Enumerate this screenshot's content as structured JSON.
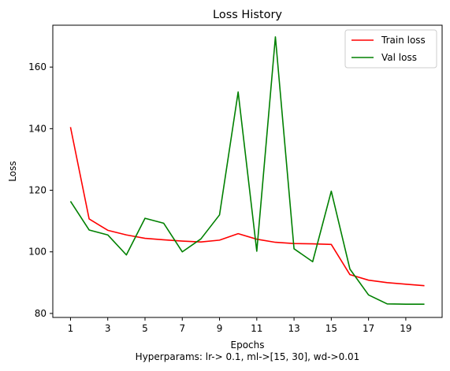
{
  "chart_data": {
    "type": "line",
    "title": "Loss History",
    "xlabel": "Epochs",
    "ylabel": "Loss",
    "caption": "Hyperparams: lr-> 0.1, ml->[15, 30], wd->0.01",
    "x": [
      1,
      2,
      3,
      4,
      5,
      6,
      7,
      8,
      9,
      10,
      11,
      12,
      13,
      14,
      15,
      16,
      17,
      18,
      19,
      20
    ],
    "xticks": [
      1,
      3,
      5,
      7,
      9,
      11,
      13,
      15,
      17,
      19
    ],
    "yticks": [
      80,
      100,
      120,
      140,
      160
    ],
    "xlim": [
      0.05,
      20.95
    ],
    "ylim": [
      78.7,
      173.6
    ],
    "grid": false,
    "legend_position": "top-right",
    "series": [
      {
        "name": "Train loss",
        "color": "#ff0000",
        "values": [
          140.5,
          110.7,
          107.0,
          105.5,
          104.4,
          103.9,
          103.5,
          103.2,
          103.8,
          105.9,
          104.1,
          103.1,
          102.7,
          102.6,
          102.4,
          92.6,
          90.8,
          90.0,
          89.5,
          89.0
        ]
      },
      {
        "name": "Val loss",
        "color": "#008000",
        "values": [
          116.4,
          107.1,
          105.5,
          99.0,
          110.9,
          109.3,
          100.0,
          104.2,
          112.0,
          151.9,
          100.2,
          169.8,
          101.0,
          96.8,
          119.7,
          94.4,
          86.0,
          83.1,
          83.0,
          83.0
        ]
      }
    ]
  }
}
